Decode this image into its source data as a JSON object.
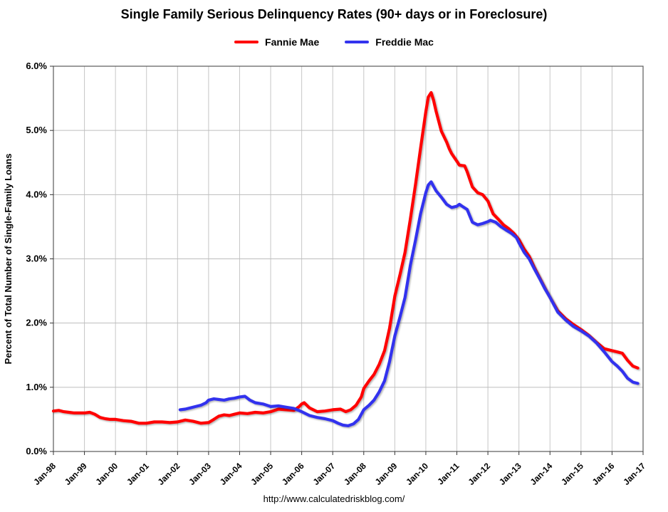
{
  "footer": "http://www.calculatedriskblog.com/",
  "chart_data": {
    "type": "line",
    "title": "Single Family Serious Delinquency Rates (90+ days or in Foreclosure)",
    "xlabel": "",
    "ylabel": "Percent of Total Number of Single-Family Loans",
    "xlim": [
      1998,
      2017
    ],
    "ylim": [
      0,
      6
    ],
    "grid": true,
    "legend_position": "top",
    "x_ticks": [
      1998,
      1999,
      2000,
      2001,
      2002,
      2003,
      2004,
      2005,
      2006,
      2007,
      2008,
      2009,
      2010,
      2011,
      2012,
      2013,
      2014,
      2015,
      2016,
      2017
    ],
    "x_tick_labels": [
      "Jan-98",
      "Jan-99",
      "Jan-00",
      "Jan-01",
      "Jan-02",
      "Jan-03",
      "Jan-04",
      "Jan-05",
      "Jan-06",
      "Jan-07",
      "Jan-08",
      "Jan-09",
      "Jan-10",
      "Jan-11",
      "Jan-12",
      "Jan-13",
      "Jan-14",
      "Jan-15",
      "Jan-16",
      "Jan-17"
    ],
    "y_ticks": [
      0,
      1,
      2,
      3,
      4,
      5,
      6
    ],
    "y_tick_labels": [
      "0.0%",
      "1.0%",
      "2.0%",
      "3.0%",
      "4.0%",
      "5.0%",
      "6.0%"
    ],
    "series": [
      {
        "name": "Fannie Mae",
        "color": "#ff0000",
        "points": [
          [
            1998.0,
            0.63
          ],
          [
            1998.17,
            0.64
          ],
          [
            1998.33,
            0.62
          ],
          [
            1998.5,
            0.61
          ],
          [
            1998.67,
            0.6
          ],
          [
            1998.83,
            0.6
          ],
          [
            1999.0,
            0.6
          ],
          [
            1999.17,
            0.61
          ],
          [
            1999.33,
            0.58
          ],
          [
            1999.5,
            0.53
          ],
          [
            1999.67,
            0.51
          ],
          [
            1999.83,
            0.5
          ],
          [
            2000.0,
            0.5
          ],
          [
            2000.25,
            0.48
          ],
          [
            2000.5,
            0.47
          ],
          [
            2000.75,
            0.44
          ],
          [
            2001.0,
            0.44
          ],
          [
            2001.25,
            0.46
          ],
          [
            2001.5,
            0.46
          ],
          [
            2001.75,
            0.45
          ],
          [
            2002.0,
            0.46
          ],
          [
            2002.25,
            0.49
          ],
          [
            2002.5,
            0.47
          ],
          [
            2002.75,
            0.44
          ],
          [
            2003.0,
            0.45
          ],
          [
            2003.17,
            0.5
          ],
          [
            2003.33,
            0.55
          ],
          [
            2003.5,
            0.57
          ],
          [
            2003.67,
            0.56
          ],
          [
            2003.83,
            0.58
          ],
          [
            2004.0,
            0.6
          ],
          [
            2004.25,
            0.59
          ],
          [
            2004.5,
            0.61
          ],
          [
            2004.75,
            0.6
          ],
          [
            2005.0,
            0.62
          ],
          [
            2005.25,
            0.66
          ],
          [
            2005.5,
            0.65
          ],
          [
            2005.75,
            0.64
          ],
          [
            2005.92,
            0.7
          ],
          [
            2006.0,
            0.74
          ],
          [
            2006.08,
            0.76
          ],
          [
            2006.25,
            0.68
          ],
          [
            2006.5,
            0.62
          ],
          [
            2006.75,
            0.63
          ],
          [
            2007.0,
            0.65
          ],
          [
            2007.25,
            0.66
          ],
          [
            2007.42,
            0.62
          ],
          [
            2007.58,
            0.65
          ],
          [
            2007.75,
            0.72
          ],
          [
            2007.92,
            0.85
          ],
          [
            2008.0,
            0.98
          ],
          [
            2008.17,
            1.1
          ],
          [
            2008.33,
            1.2
          ],
          [
            2008.5,
            1.36
          ],
          [
            2008.67,
            1.57
          ],
          [
            2008.83,
            1.92
          ],
          [
            2009.0,
            2.42
          ],
          [
            2009.17,
            2.76
          ],
          [
            2009.33,
            3.1
          ],
          [
            2009.5,
            3.62
          ],
          [
            2009.67,
            4.17
          ],
          [
            2009.83,
            4.72
          ],
          [
            2010.0,
            5.29
          ],
          [
            2010.08,
            5.52
          ],
          [
            2010.17,
            5.59
          ],
          [
            2010.25,
            5.47
          ],
          [
            2010.33,
            5.3
          ],
          [
            2010.5,
            4.99
          ],
          [
            2010.67,
            4.82
          ],
          [
            2010.75,
            4.72
          ],
          [
            2010.83,
            4.64
          ],
          [
            2011.0,
            4.52
          ],
          [
            2011.08,
            4.46
          ],
          [
            2011.25,
            4.45
          ],
          [
            2011.33,
            4.36
          ],
          [
            2011.5,
            4.12
          ],
          [
            2011.67,
            4.03
          ],
          [
            2011.83,
            4.0
          ],
          [
            2012.0,
            3.9
          ],
          [
            2012.17,
            3.7
          ],
          [
            2012.33,
            3.62
          ],
          [
            2012.5,
            3.53
          ],
          [
            2012.67,
            3.47
          ],
          [
            2012.83,
            3.4
          ],
          [
            2013.0,
            3.3
          ],
          [
            2013.17,
            3.15
          ],
          [
            2013.33,
            3.04
          ],
          [
            2013.5,
            2.86
          ],
          [
            2013.67,
            2.7
          ],
          [
            2013.83,
            2.55
          ],
          [
            2014.0,
            2.4
          ],
          [
            2014.25,
            2.19
          ],
          [
            2014.5,
            2.07
          ],
          [
            2014.75,
            1.98
          ],
          [
            2015.0,
            1.9
          ],
          [
            2015.25,
            1.81
          ],
          [
            2015.5,
            1.7
          ],
          [
            2015.75,
            1.6
          ],
          [
            2016.0,
            1.57
          ],
          [
            2016.17,
            1.55
          ],
          [
            2016.33,
            1.53
          ],
          [
            2016.5,
            1.42
          ],
          [
            2016.67,
            1.33
          ],
          [
            2016.83,
            1.3
          ]
        ]
      },
      {
        "name": "Freddie Mac",
        "color": "#3333ee",
        "points": [
          [
            2002.08,
            0.65
          ],
          [
            2002.25,
            0.66
          ],
          [
            2002.42,
            0.68
          ],
          [
            2002.58,
            0.7
          ],
          [
            2002.75,
            0.72
          ],
          [
            2002.92,
            0.76
          ],
          [
            2003.0,
            0.8
          ],
          [
            2003.17,
            0.82
          ],
          [
            2003.33,
            0.81
          ],
          [
            2003.5,
            0.8
          ],
          [
            2003.67,
            0.82
          ],
          [
            2003.83,
            0.83
          ],
          [
            2004.0,
            0.85
          ],
          [
            2004.17,
            0.86
          ],
          [
            2004.33,
            0.8
          ],
          [
            2004.5,
            0.76
          ],
          [
            2004.75,
            0.74
          ],
          [
            2005.0,
            0.7
          ],
          [
            2005.25,
            0.71
          ],
          [
            2005.5,
            0.69
          ],
          [
            2005.75,
            0.67
          ],
          [
            2006.0,
            0.62
          ],
          [
            2006.25,
            0.56
          ],
          [
            2006.5,
            0.53
          ],
          [
            2006.75,
            0.51
          ],
          [
            2007.0,
            0.48
          ],
          [
            2007.17,
            0.44
          ],
          [
            2007.33,
            0.41
          ],
          [
            2007.5,
            0.4
          ],
          [
            2007.67,
            0.43
          ],
          [
            2007.83,
            0.5
          ],
          [
            2008.0,
            0.65
          ],
          [
            2008.17,
            0.72
          ],
          [
            2008.33,
            0.8
          ],
          [
            2008.5,
            0.93
          ],
          [
            2008.67,
            1.1
          ],
          [
            2008.83,
            1.4
          ],
          [
            2009.0,
            1.8
          ],
          [
            2009.17,
            2.1
          ],
          [
            2009.33,
            2.4
          ],
          [
            2009.5,
            2.9
          ],
          [
            2009.67,
            3.3
          ],
          [
            2009.83,
            3.7
          ],
          [
            2010.0,
            4.03
          ],
          [
            2010.08,
            4.15
          ],
          [
            2010.17,
            4.2
          ],
          [
            2010.25,
            4.13
          ],
          [
            2010.33,
            4.06
          ],
          [
            2010.5,
            3.96
          ],
          [
            2010.67,
            3.85
          ],
          [
            2010.83,
            3.8
          ],
          [
            2011.0,
            3.82
          ],
          [
            2011.08,
            3.85
          ],
          [
            2011.17,
            3.82
          ],
          [
            2011.33,
            3.77
          ],
          [
            2011.5,
            3.57
          ],
          [
            2011.67,
            3.53
          ],
          [
            2011.83,
            3.55
          ],
          [
            2012.0,
            3.58
          ],
          [
            2012.08,
            3.6
          ],
          [
            2012.25,
            3.57
          ],
          [
            2012.42,
            3.5
          ],
          [
            2012.58,
            3.45
          ],
          [
            2012.75,
            3.4
          ],
          [
            2012.92,
            3.33
          ],
          [
            2013.0,
            3.25
          ],
          [
            2013.17,
            3.1
          ],
          [
            2013.33,
            3.0
          ],
          [
            2013.5,
            2.84
          ],
          [
            2013.67,
            2.69
          ],
          [
            2013.83,
            2.54
          ],
          [
            2014.0,
            2.4
          ],
          [
            2014.25,
            2.17
          ],
          [
            2014.5,
            2.05
          ],
          [
            2014.75,
            1.95
          ],
          [
            2015.0,
            1.88
          ],
          [
            2015.25,
            1.8
          ],
          [
            2015.5,
            1.69
          ],
          [
            2015.75,
            1.55
          ],
          [
            2016.0,
            1.4
          ],
          [
            2016.17,
            1.33
          ],
          [
            2016.33,
            1.25
          ],
          [
            2016.5,
            1.14
          ],
          [
            2016.67,
            1.08
          ],
          [
            2016.83,
            1.06
          ]
        ]
      }
    ]
  }
}
